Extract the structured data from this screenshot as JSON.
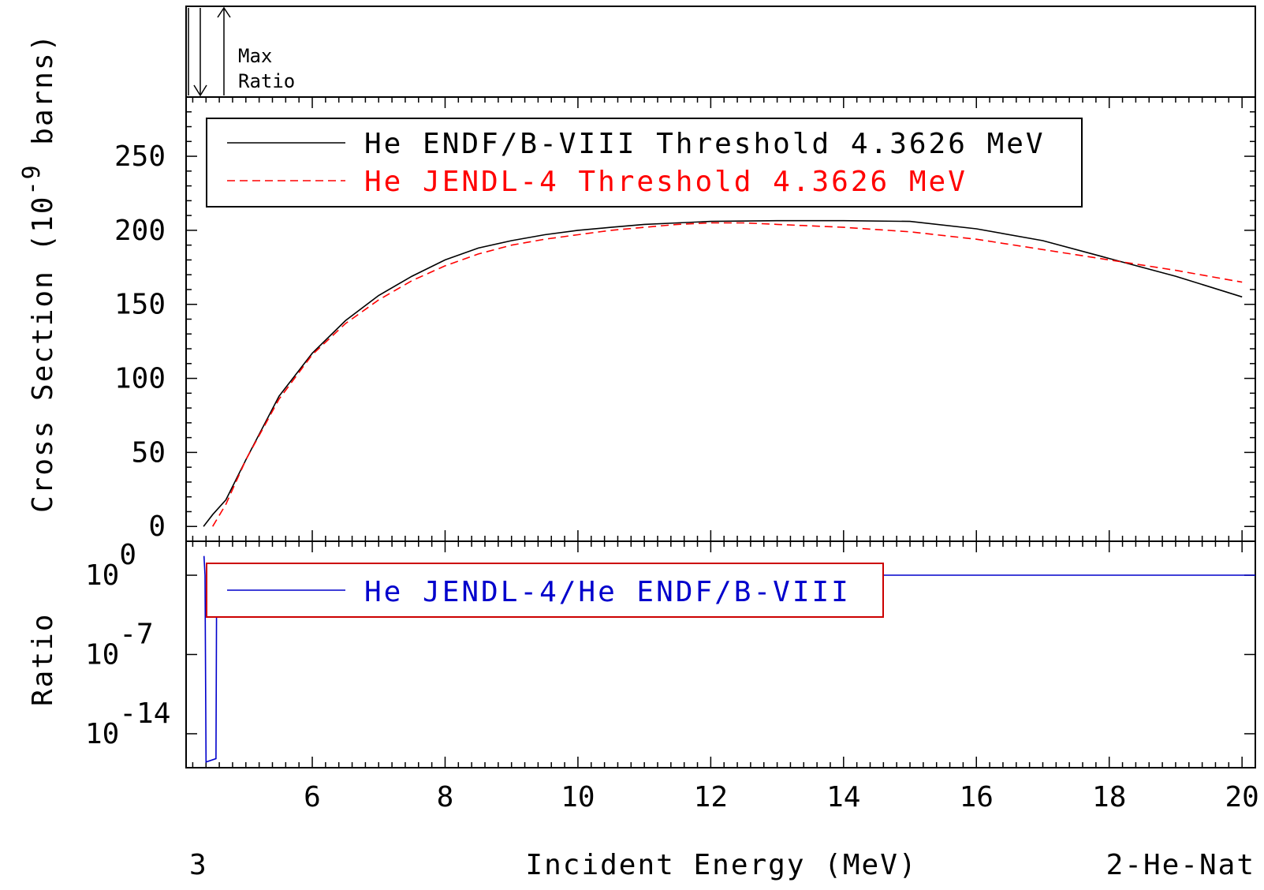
{
  "chart_data": {
    "type": "line",
    "x_label": "Incident Energy (MeV)",
    "y_label_top": "Cross Section (10^-9 barns)",
    "y_label_top_parts": {
      "pre": "Cross Section (10",
      "exp": "-9",
      "post": " barns)"
    },
    "y_label_bottom": "Ratio",
    "x_ticks": [
      "6",
      "8",
      "10",
      "12",
      "14",
      "16",
      "18",
      "20"
    ],
    "x_tick_values": [
      6,
      8,
      10,
      12,
      14,
      16,
      18,
      20
    ],
    "xlim": [
      4.1,
      20.2
    ],
    "top_panel": {
      "label_max": "Max",
      "label_ratio": "Ratio"
    },
    "main_panel": {
      "ylim": [
        -10,
        290
      ],
      "y_ticks": [
        "0",
        "50",
        "100",
        "150",
        "200",
        "250"
      ],
      "y_tick_values": [
        0,
        50,
        100,
        150,
        200,
        250
      ],
      "series": [
        {
          "name": "He ENDF/B-VIII Threshold 4.3626 MeV",
          "color": "#000000",
          "dash": "none",
          "x": [
            4.3626,
            4.5,
            4.7,
            5.0,
            5.5,
            6.0,
            6.5,
            7.0,
            7.5,
            8.0,
            8.5,
            9.0,
            9.5,
            10.0,
            10.5,
            11.0,
            11.5,
            12.0,
            13.0,
            14.0,
            15.0,
            16.0,
            17.0,
            18.0,
            19.0,
            20.0
          ],
          "y": [
            0,
            8,
            18,
            45,
            88,
            117,
            139,
            156,
            169,
            180,
            188,
            193,
            197,
            200,
            202,
            204,
            205,
            206,
            206.5,
            206.5,
            206,
            201,
            193,
            181,
            169,
            155
          ]
        },
        {
          "name": "He JENDL-4 Threshold 4.3626 MeV",
          "color": "#ff0000",
          "dash": "10,6",
          "x": [
            4.5,
            4.7,
            5.0,
            5.5,
            6.0,
            6.5,
            7.0,
            7.5,
            8.0,
            8.5,
            9.0,
            9.5,
            10.0,
            10.5,
            11.0,
            11.5,
            12.0,
            12.5,
            13.0,
            14.0,
            15.0,
            16.0,
            17.0,
            18.0,
            19.0,
            20.0
          ],
          "y": [
            0,
            15,
            45,
            86,
            116,
            137,
            153,
            166,
            176,
            184,
            190,
            194,
            197,
            200,
            202,
            204,
            205,
            205,
            204,
            202,
            199,
            194,
            187,
            180,
            173,
            165
          ]
        }
      ]
    },
    "ratio_panel": {
      "scale": "log",
      "ylim_exp": [
        -17,
        3
      ],
      "y_tick_base": "10",
      "y_tick_exps": [
        "0",
        "-7",
        "-14"
      ],
      "y_tick_values": [
        0,
        -7,
        -14
      ],
      "series": [
        {
          "name": "He JENDL-4/He ENDF/B-VIII",
          "color": "#0000cc",
          "x": [
            4.37,
            4.385,
            4.4,
            4.55,
            4.56,
            4.6,
            4.65,
            4.8,
            5.0,
            20.2
          ],
          "log10_y": [
            1.7,
            0,
            -16.5,
            -16.2,
            -1.5,
            -0.3,
            0.1,
            0.1,
            0,
            0
          ]
        }
      ]
    },
    "footer_left": "3",
    "footer_right": "2-He-Nat"
  }
}
